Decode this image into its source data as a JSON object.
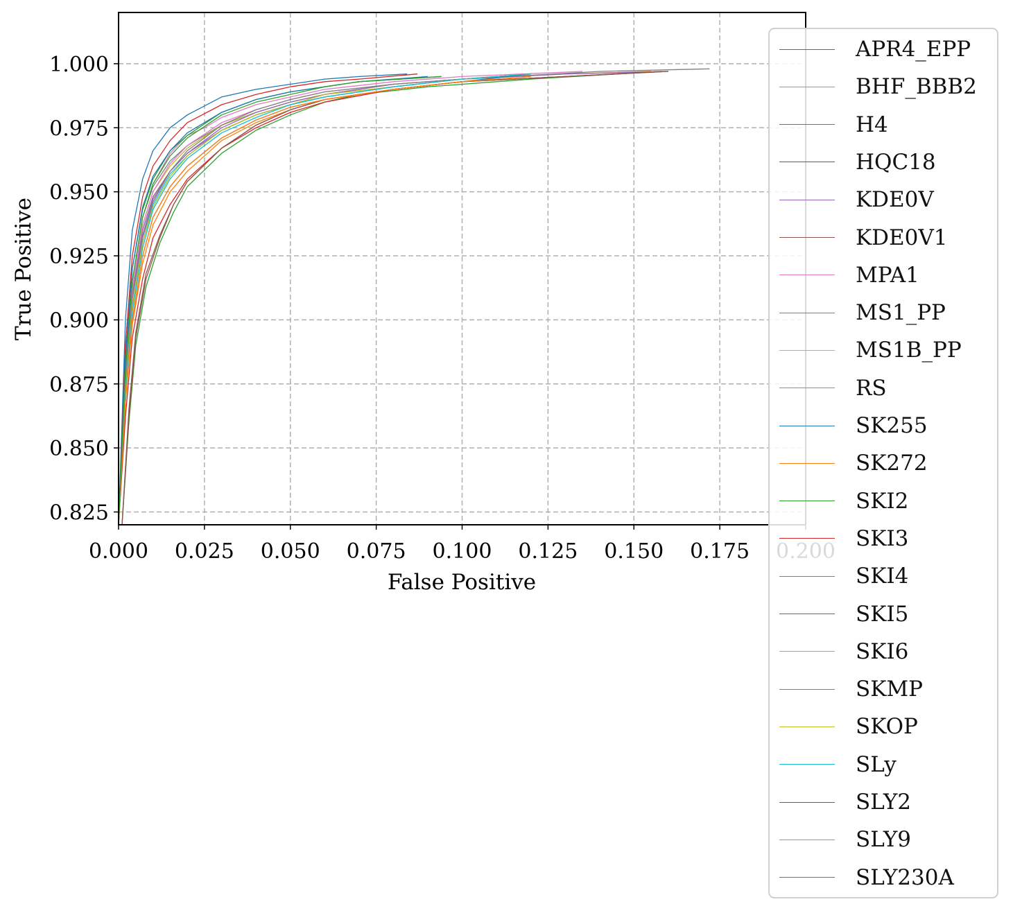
{
  "chart_data": {
    "type": "line",
    "title": "",
    "xlabel": "False Positive",
    "ylabel": "True Positive",
    "xlim": [
      0.0,
      0.2
    ],
    "ylim": [
      0.82,
      1.02
    ],
    "xticks": [
      "0.000",
      "0.025",
      "0.050",
      "0.075",
      "0.100",
      "0.125",
      "0.150",
      "0.175",
      "0.200"
    ],
    "yticks": [
      "0.825",
      "0.850",
      "0.875",
      "0.900",
      "0.925",
      "0.950",
      "0.975",
      "1.000"
    ],
    "grid": true,
    "legend_position": "right",
    "series": [
      {
        "name": "APR4_EPP",
        "color": "#1f77b4",
        "x": [
          0.0,
          0.002,
          0.004,
          0.007,
          0.01,
          0.015,
          0.02,
          0.03,
          0.04,
          0.05,
          0.06,
          0.07,
          0.084
        ],
        "y": [
          0.82,
          0.9,
          0.935,
          0.955,
          0.966,
          0.975,
          0.98,
          0.987,
          0.99,
          0.992,
          0.994,
          0.995,
          0.996
        ]
      },
      {
        "name": "BHF_BBB2",
        "color": "#ff7f0e",
        "x": [
          0.0,
          0.002,
          0.004,
          0.007,
          0.01,
          0.015,
          0.02,
          0.03,
          0.04,
          0.05,
          0.06,
          0.08,
          0.1,
          0.13,
          0.155
        ],
        "y": [
          0.82,
          0.87,
          0.91,
          0.935,
          0.948,
          0.958,
          0.965,
          0.974,
          0.98,
          0.984,
          0.987,
          0.991,
          0.994,
          0.996,
          0.997
        ]
      },
      {
        "name": "H4",
        "color": "#2ca02c",
        "x": [
          0.001,
          0.003,
          0.005,
          0.008,
          0.012,
          0.016,
          0.02,
          0.03,
          0.04,
          0.05,
          0.06,
          0.07,
          0.09,
          0.12,
          0.158
        ],
        "y": [
          0.82,
          0.86,
          0.89,
          0.913,
          0.93,
          0.942,
          0.952,
          0.965,
          0.974,
          0.98,
          0.985,
          0.988,
          0.991,
          0.994,
          0.997
        ]
      },
      {
        "name": "HQC18",
        "color": "#d62728",
        "x": [
          0.0,
          0.002,
          0.004,
          0.007,
          0.01,
          0.015,
          0.02,
          0.03,
          0.04,
          0.05,
          0.06,
          0.07,
          0.087
        ],
        "y": [
          0.82,
          0.89,
          0.925,
          0.948,
          0.96,
          0.97,
          0.977,
          0.984,
          0.988,
          0.991,
          0.993,
          0.994,
          0.996
        ]
      },
      {
        "name": "KDE0V",
        "color": "#9467bd",
        "x": [
          0.0,
          0.002,
          0.004,
          0.007,
          0.01,
          0.015,
          0.02,
          0.03,
          0.04,
          0.05,
          0.06,
          0.08,
          0.1,
          0.13,
          0.16
        ],
        "y": [
          0.82,
          0.875,
          0.91,
          0.935,
          0.948,
          0.958,
          0.965,
          0.974,
          0.98,
          0.984,
          0.987,
          0.991,
          0.994,
          0.996,
          0.997
        ]
      },
      {
        "name": "KDE0V1",
        "color": "#8c564b",
        "x": [
          0.001,
          0.003,
          0.005,
          0.008,
          0.012,
          0.016,
          0.02,
          0.03,
          0.04,
          0.05,
          0.06,
          0.08,
          0.1,
          0.13,
          0.158
        ],
        "y": [
          0.82,
          0.865,
          0.895,
          0.918,
          0.933,
          0.945,
          0.954,
          0.967,
          0.976,
          0.982,
          0.986,
          0.99,
          0.993,
          0.995,
          0.997
        ]
      },
      {
        "name": "MPA1",
        "color": "#e377c2",
        "x": [
          0.0,
          0.002,
          0.004,
          0.007,
          0.01,
          0.015,
          0.02,
          0.025,
          0.03,
          0.04,
          0.05,
          0.06,
          0.08,
          0.1,
          0.135
        ],
        "y": [
          0.82,
          0.88,
          0.915,
          0.94,
          0.953,
          0.965,
          0.972,
          0.975,
          0.979,
          0.984,
          0.987,
          0.99,
          0.993,
          0.995,
          0.997
        ]
      },
      {
        "name": "MS1_PP",
        "color": "#7f7f7f",
        "x": [
          0.0,
          0.002,
          0.004,
          0.007,
          0.01,
          0.015,
          0.02,
          0.03,
          0.04,
          0.05,
          0.06,
          0.08,
          0.1,
          0.14,
          0.172
        ],
        "y": [
          0.82,
          0.88,
          0.915,
          0.94,
          0.952,
          0.962,
          0.968,
          0.976,
          0.981,
          0.985,
          0.988,
          0.992,
          0.994,
          0.997,
          0.998
        ]
      },
      {
        "name": "MS1B_PP",
        "color": "#bcbd22",
        "x": [
          0.0,
          0.002,
          0.004,
          0.007,
          0.01,
          0.015,
          0.02,
          0.03,
          0.04,
          0.05,
          0.06,
          0.08,
          0.1,
          0.12
        ],
        "y": [
          0.82,
          0.88,
          0.912,
          0.937,
          0.95,
          0.96,
          0.967,
          0.976,
          0.981,
          0.985,
          0.988,
          0.992,
          0.994,
          0.996
        ]
      },
      {
        "name": "RS",
        "color": "#17becf",
        "x": [
          0.0,
          0.002,
          0.004,
          0.007,
          0.01,
          0.015,
          0.02,
          0.03,
          0.04,
          0.05,
          0.06,
          0.08,
          0.1,
          0.12
        ],
        "y": [
          0.82,
          0.87,
          0.905,
          0.93,
          0.945,
          0.957,
          0.964,
          0.974,
          0.98,
          0.984,
          0.987,
          0.991,
          0.994,
          0.996
        ]
      },
      {
        "name": "SK255",
        "color": "#1f77b4",
        "x": [
          0.0,
          0.002,
          0.004,
          0.007,
          0.01,
          0.015,
          0.02,
          0.03,
          0.04,
          0.05,
          0.06,
          0.08,
          0.1,
          0.12
        ],
        "y": [
          0.82,
          0.87,
          0.9,
          0.925,
          0.94,
          0.952,
          0.96,
          0.971,
          0.978,
          0.983,
          0.986,
          0.99,
          0.993,
          0.996
        ]
      },
      {
        "name": "SK272",
        "color": "#ff7f0e",
        "x": [
          0.0,
          0.002,
          0.004,
          0.007,
          0.01,
          0.015,
          0.02,
          0.03,
          0.04,
          0.05,
          0.06,
          0.08,
          0.1,
          0.12
        ],
        "y": [
          0.82,
          0.868,
          0.898,
          0.922,
          0.937,
          0.95,
          0.958,
          0.97,
          0.977,
          0.982,
          0.986,
          0.99,
          0.993,
          0.995
        ]
      },
      {
        "name": "SKI2",
        "color": "#2ca02c",
        "x": [
          0.0,
          0.002,
          0.004,
          0.007,
          0.01,
          0.015,
          0.02,
          0.03,
          0.04,
          0.05,
          0.06,
          0.07,
          0.094
        ],
        "y": [
          0.82,
          0.885,
          0.92,
          0.943,
          0.955,
          0.966,
          0.972,
          0.981,
          0.986,
          0.989,
          0.991,
          0.993,
          0.995
        ]
      },
      {
        "name": "SKI3",
        "color": "#d62728",
        "x": [
          0.0,
          0.002,
          0.004,
          0.007,
          0.01,
          0.015,
          0.02,
          0.03,
          0.04,
          0.05,
          0.06,
          0.08,
          0.1,
          0.13,
          0.16
        ],
        "y": [
          0.82,
          0.862,
          0.893,
          0.916,
          0.932,
          0.945,
          0.955,
          0.967,
          0.975,
          0.981,
          0.985,
          0.99,
          0.993,
          0.995,
          0.997
        ]
      },
      {
        "name": "SKI4",
        "color": "#9467bd",
        "x": [
          0.0,
          0.002,
          0.004,
          0.007,
          0.01,
          0.015,
          0.02,
          0.03,
          0.04,
          0.05,
          0.06,
          0.08,
          0.1,
          0.12
        ],
        "y": [
          0.82,
          0.875,
          0.908,
          0.932,
          0.946,
          0.958,
          0.965,
          0.975,
          0.981,
          0.985,
          0.988,
          0.992,
          0.994,
          0.996
        ]
      },
      {
        "name": "SKI5",
        "color": "#8c564b",
        "x": [
          0.001,
          0.003,
          0.005,
          0.008,
          0.012,
          0.016,
          0.02,
          0.03,
          0.04,
          0.05,
          0.06,
          0.08,
          0.1,
          0.13,
          0.16
        ],
        "y": [
          0.82,
          0.862,
          0.893,
          0.916,
          0.932,
          0.945,
          0.954,
          0.967,
          0.976,
          0.982,
          0.986,
          0.99,
          0.993,
          0.995,
          0.997
        ]
      },
      {
        "name": "SKI6",
        "color": "#e377c2",
        "x": [
          0.0,
          0.002,
          0.004,
          0.007,
          0.01,
          0.015,
          0.02,
          0.03,
          0.04,
          0.05,
          0.06,
          0.08,
          0.1,
          0.12
        ],
        "y": [
          0.82,
          0.878,
          0.912,
          0.937,
          0.95,
          0.961,
          0.968,
          0.977,
          0.982,
          0.986,
          0.989,
          0.992,
          0.994,
          0.996
        ]
      },
      {
        "name": "SKMP",
        "color": "#7f7f7f",
        "x": [
          0.0,
          0.002,
          0.004,
          0.007,
          0.01,
          0.015,
          0.02,
          0.03,
          0.04,
          0.05,
          0.06,
          0.08,
          0.1,
          0.12
        ],
        "y": [
          0.82,
          0.875,
          0.908,
          0.933,
          0.947,
          0.958,
          0.966,
          0.976,
          0.982,
          0.986,
          0.989,
          0.992,
          0.994,
          0.996
        ]
      },
      {
        "name": "SKOP",
        "color": "#bcbd22",
        "x": [
          0.0,
          0.002,
          0.004,
          0.007,
          0.01,
          0.015,
          0.02,
          0.03,
          0.04,
          0.05,
          0.06,
          0.08,
          0.1,
          0.12
        ],
        "y": [
          0.82,
          0.872,
          0.905,
          0.93,
          0.944,
          0.956,
          0.964,
          0.974,
          0.98,
          0.984,
          0.988,
          0.991,
          0.994,
          0.996
        ]
      },
      {
        "name": "SLy",
        "color": "#17becf",
        "x": [
          0.0,
          0.002,
          0.004,
          0.007,
          0.01,
          0.015,
          0.02,
          0.03,
          0.04,
          0.05,
          0.06,
          0.08,
          0.1,
          0.12
        ],
        "y": [
          0.82,
          0.87,
          0.903,
          0.928,
          0.943,
          0.955,
          0.963,
          0.973,
          0.979,
          0.984,
          0.987,
          0.991,
          0.994,
          0.996
        ]
      },
      {
        "name": "SLY2",
        "color": "#1f77b4",
        "x": [
          0.0,
          0.002,
          0.004,
          0.007,
          0.01,
          0.015,
          0.02,
          0.03,
          0.04,
          0.05,
          0.06,
          0.07,
          0.09
        ],
        "y": [
          0.82,
          0.885,
          0.92,
          0.944,
          0.956,
          0.966,
          0.973,
          0.981,
          0.986,
          0.989,
          0.991,
          0.993,
          0.995
        ]
      },
      {
        "name": "SLY9",
        "color": "#ff7f0e",
        "x": [
          0.0,
          0.002,
          0.004,
          0.007,
          0.01,
          0.015,
          0.02,
          0.03,
          0.04,
          0.05,
          0.06,
          0.08,
          0.1,
          0.12
        ],
        "y": [
          0.82,
          0.868,
          0.9,
          0.925,
          0.94,
          0.952,
          0.96,
          0.971,
          0.978,
          0.983,
          0.986,
          0.99,
          0.993,
          0.995
        ]
      },
      {
        "name": "SLY230A",
        "color": "#2ca02c",
        "x": [
          0.0,
          0.002,
          0.004,
          0.007,
          0.01,
          0.015,
          0.02,
          0.03,
          0.04,
          0.05,
          0.06,
          0.07,
          0.094
        ],
        "y": [
          0.82,
          0.88,
          0.915,
          0.94,
          0.953,
          0.964,
          0.971,
          0.98,
          0.985,
          0.988,
          0.991,
          0.993,
          0.995
        ]
      }
    ]
  }
}
